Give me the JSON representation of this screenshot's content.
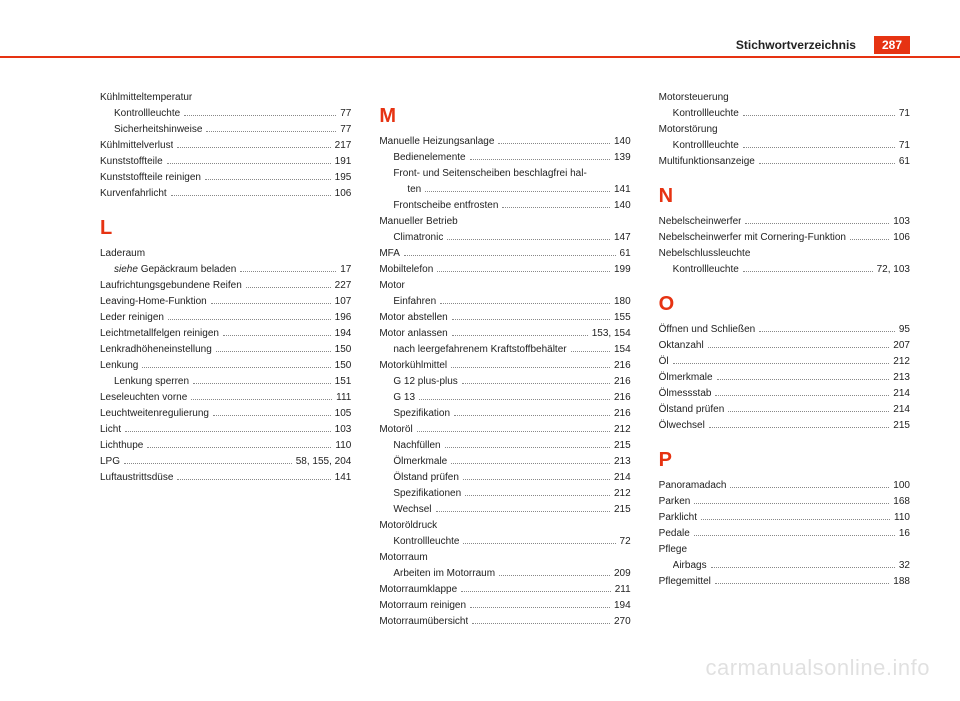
{
  "header": {
    "section_title": "Stichwortverzeichnis",
    "page_number": "287"
  },
  "watermark": "carmanualsonline.info",
  "colors": {
    "accent": "#e63312",
    "text": "#222222",
    "dots": "#888888",
    "watermark": "rgba(0,0,0,0.12)",
    "background": "#ffffff"
  },
  "entries": [
    {
      "label": "Kühlmitteltemperatur",
      "page": "",
      "sub": false,
      "noline": true
    },
    {
      "label": "Kontrollleuchte",
      "page": "77",
      "sub": true
    },
    {
      "label": "Sicherheitshinweise",
      "page": "77",
      "sub": true
    },
    {
      "label": "Kühlmittelverlust",
      "page": "217",
      "sub": false
    },
    {
      "label": "Kunststoffteile",
      "page": "191",
      "sub": false
    },
    {
      "label": "Kunststoffteile reinigen",
      "page": "195",
      "sub": false
    },
    {
      "label": "Kurvenfahrlicht",
      "page": "106",
      "sub": false
    },
    {
      "letter": "L"
    },
    {
      "label": "Laderaum",
      "page": "",
      "sub": false,
      "noline": true
    },
    {
      "label": "siehe Gepäckraum beladen",
      "page": "17",
      "sub": true,
      "italicword": "siehe"
    },
    {
      "label": "Laufrichtungsgebundene Reifen",
      "page": "227",
      "sub": false
    },
    {
      "label": "Leaving-Home-Funktion",
      "page": "107",
      "sub": false
    },
    {
      "label": "Leder reinigen",
      "page": "196",
      "sub": false
    },
    {
      "label": "Leichtmetallfelgen reinigen",
      "page": "194",
      "sub": false
    },
    {
      "label": "Lenkradhöheneinstellung",
      "page": "150",
      "sub": false
    },
    {
      "label": "Lenkung",
      "page": "150",
      "sub": false
    },
    {
      "label": "Lenkung sperren",
      "page": "151",
      "sub": true
    },
    {
      "label": "Leseleuchten vorne",
      "page": "111",
      "sub": false
    },
    {
      "label": "Leuchtweitenregulierung",
      "page": "105",
      "sub": false
    },
    {
      "label": "Licht",
      "page": "103",
      "sub": false
    },
    {
      "label": "Lichthupe",
      "page": "110",
      "sub": false
    },
    {
      "label": "LPG",
      "page": "58, 155, 204",
      "sub": false
    },
    {
      "label": "Luftaustrittsdüse",
      "page": "141",
      "sub": false
    },
    {
      "letter": "M",
      "colbreak": true
    },
    {
      "label": "Manuelle Heizungsanlage",
      "page": "140",
      "sub": false
    },
    {
      "label": "Bedienelemente",
      "page": "139",
      "sub": true
    },
    {
      "label": "Front- und Seitenscheiben beschlagfrei hal-",
      "page": "",
      "sub": true,
      "noline": true
    },
    {
      "label": "ten",
      "page": "141",
      "sub": true,
      "extraindent": true
    },
    {
      "label": "Frontscheibe entfrosten",
      "page": "140",
      "sub": true
    },
    {
      "label": "Manueller Betrieb",
      "page": "",
      "sub": false,
      "noline": true
    },
    {
      "label": "Climatronic",
      "page": "147",
      "sub": true
    },
    {
      "label": "MFA",
      "page": "61",
      "sub": false
    },
    {
      "label": "Mobiltelefon",
      "page": "199",
      "sub": false
    },
    {
      "label": "Motor",
      "page": "",
      "sub": false,
      "noline": true
    },
    {
      "label": "Einfahren",
      "page": "180",
      "sub": true
    },
    {
      "label": "Motor abstellen",
      "page": "155",
      "sub": false
    },
    {
      "label": "Motor anlassen",
      "page": "153, 154",
      "sub": false
    },
    {
      "label": "nach leergefahrenem Kraftstoffbehälter",
      "page": "154",
      "sub": true
    },
    {
      "label": "Motorkühlmittel",
      "page": "216",
      "sub": false
    },
    {
      "label": "G 12 plus-plus",
      "page": "216",
      "sub": true
    },
    {
      "label": "G 13",
      "page": "216",
      "sub": true
    },
    {
      "label": "Spezifikation",
      "page": "216",
      "sub": true
    },
    {
      "label": "Motoröl",
      "page": "212",
      "sub": false
    },
    {
      "label": "Nachfüllen",
      "page": "215",
      "sub": true
    },
    {
      "label": "Ölmerkmale",
      "page": "213",
      "sub": true
    },
    {
      "label": "Ölstand prüfen",
      "page": "214",
      "sub": true
    },
    {
      "label": "Spezifikationen",
      "page": "212",
      "sub": true
    },
    {
      "label": "Wechsel",
      "page": "215",
      "sub": true
    },
    {
      "label": "Motoröldruck",
      "page": "",
      "sub": false,
      "noline": true
    },
    {
      "label": "Kontrollleuchte",
      "page": "72",
      "sub": true
    },
    {
      "label": "Motorraum",
      "page": "",
      "sub": false,
      "noline": true
    },
    {
      "label": "Arbeiten im Motorraum",
      "page": "209",
      "sub": true
    },
    {
      "label": "Motorraumklappe",
      "page": "211",
      "sub": false
    },
    {
      "label": "Motorraum reinigen",
      "page": "194",
      "sub": false
    },
    {
      "label": "Motorraumübersicht",
      "page": "270",
      "sub": false
    },
    {
      "label": "Motorsteuerung",
      "page": "",
      "sub": false,
      "noline": true,
      "colbreak": true
    },
    {
      "label": "Kontrollleuchte",
      "page": "71",
      "sub": true
    },
    {
      "label": "Motorstörung",
      "page": "",
      "sub": false,
      "noline": true
    },
    {
      "label": "Kontrollleuchte",
      "page": "71",
      "sub": true
    },
    {
      "label": "Multifunktionsanzeige",
      "page": "61",
      "sub": false
    },
    {
      "letter": "N"
    },
    {
      "label": "Nebelscheinwerfer",
      "page": "103",
      "sub": false
    },
    {
      "label": "Nebelscheinwerfer mit Cornering-Funktion",
      "page": "106",
      "sub": false
    },
    {
      "label": "Nebelschlussleuchte",
      "page": "",
      "sub": false,
      "noline": true
    },
    {
      "label": "Kontrollleuchte",
      "page": "72, 103",
      "sub": true
    },
    {
      "letter": "O"
    },
    {
      "label": "Öffnen und Schließen",
      "page": "95",
      "sub": false
    },
    {
      "label": "Oktanzahl",
      "page": "207",
      "sub": false
    },
    {
      "label": "Öl",
      "page": "212",
      "sub": false
    },
    {
      "label": "Ölmerkmale",
      "page": "213",
      "sub": false
    },
    {
      "label": "Ölmessstab",
      "page": "214",
      "sub": false
    },
    {
      "label": "Ölstand prüfen",
      "page": "214",
      "sub": false
    },
    {
      "label": "Ölwechsel",
      "page": "215",
      "sub": false
    },
    {
      "letter": "P"
    },
    {
      "label": "Panoramadach",
      "page": "100",
      "sub": false
    },
    {
      "label": "Parken",
      "page": "168",
      "sub": false
    },
    {
      "label": "Parklicht",
      "page": "110",
      "sub": false
    },
    {
      "label": "Pedale",
      "page": "16",
      "sub": false
    },
    {
      "label": "Pflege",
      "page": "",
      "sub": false,
      "noline": true
    },
    {
      "label": "Airbags",
      "page": "32",
      "sub": true
    },
    {
      "label": "Pflegemittel",
      "page": "188",
      "sub": false
    }
  ]
}
